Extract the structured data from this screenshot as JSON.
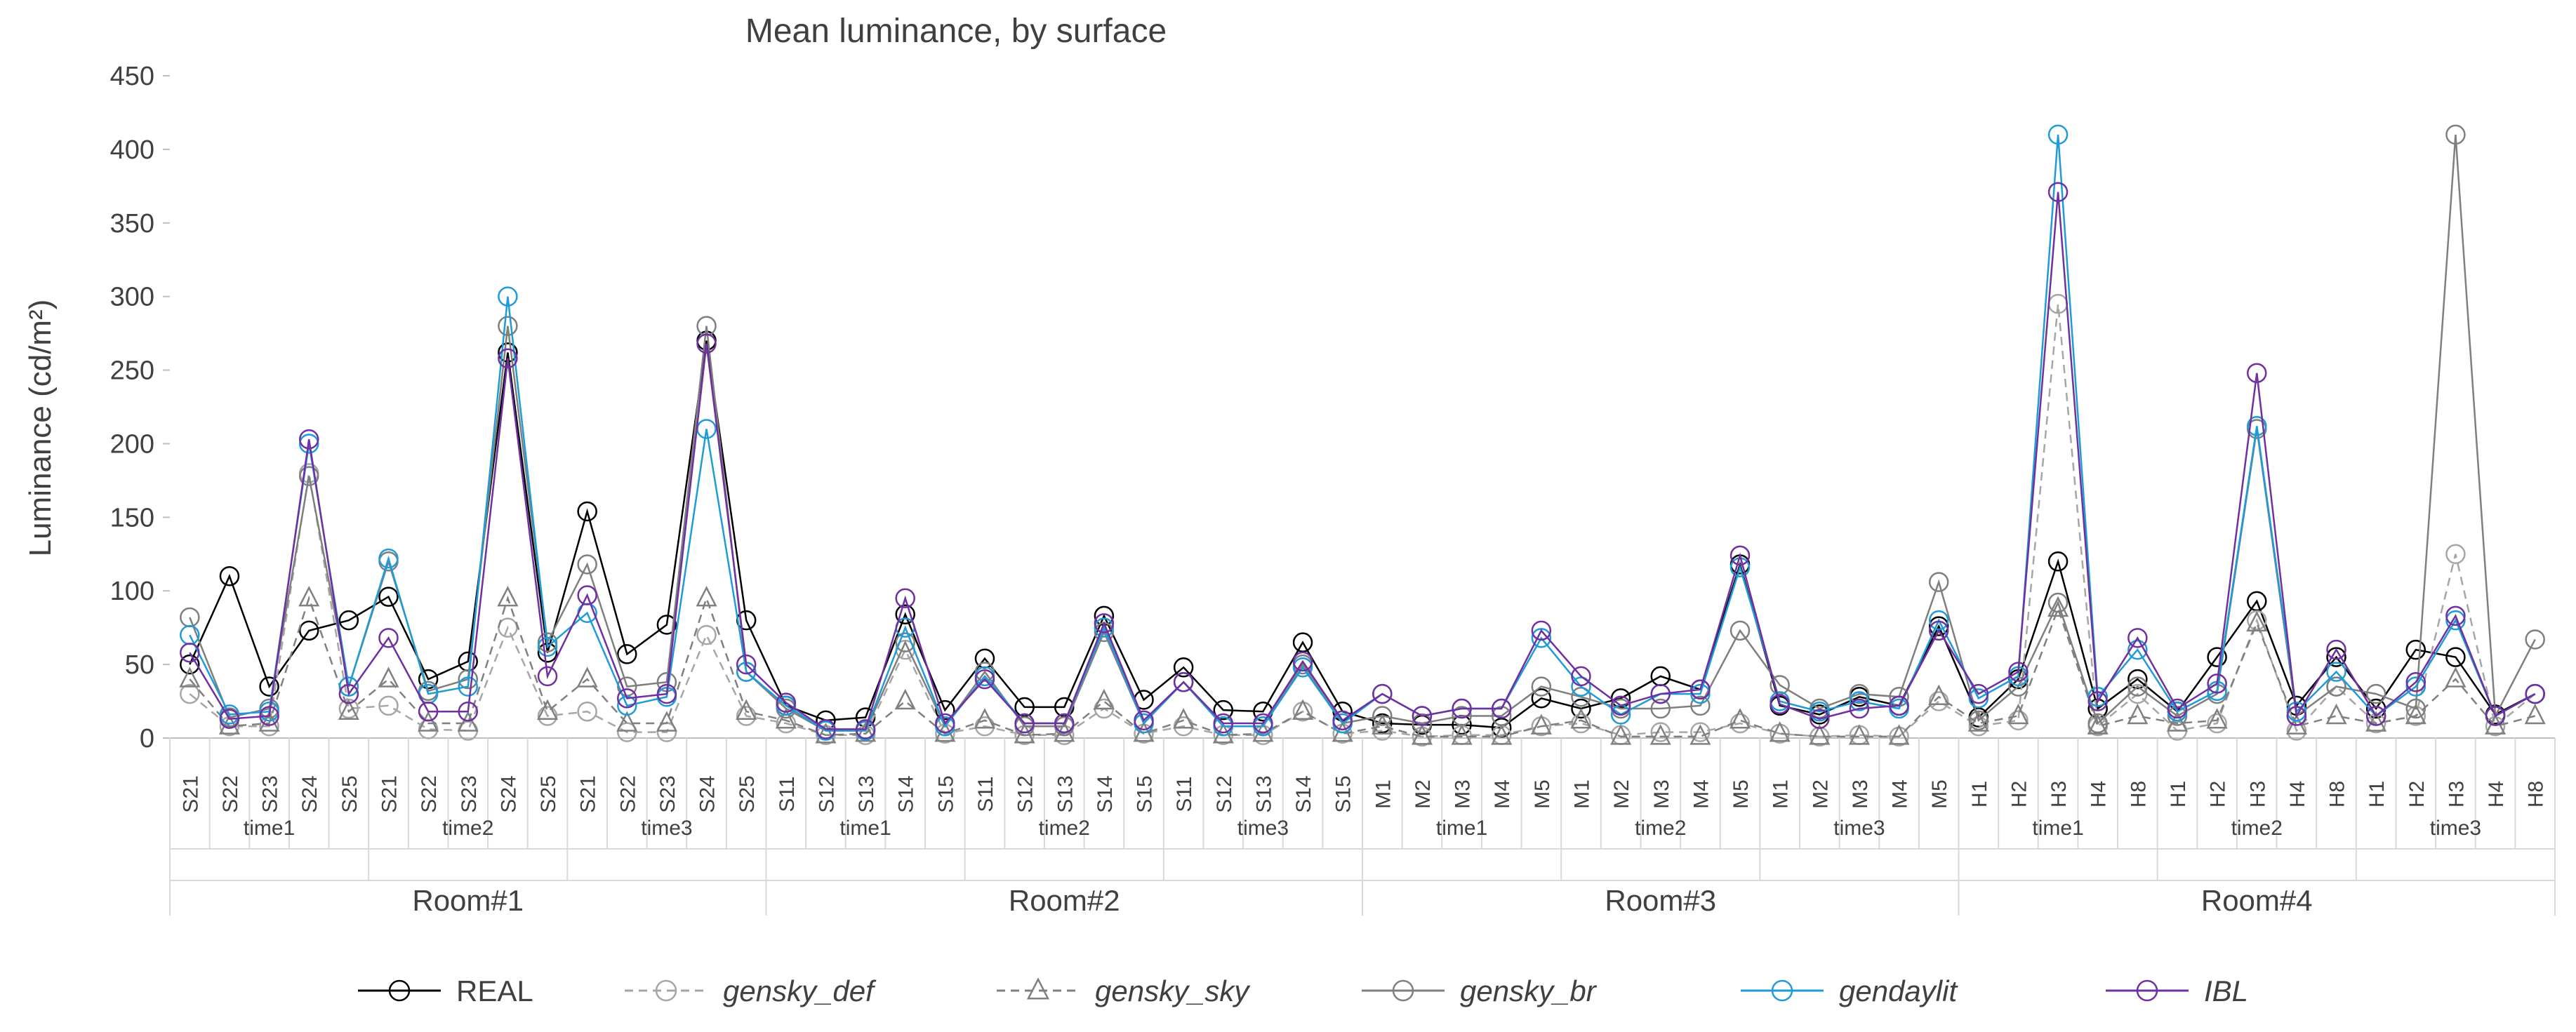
{
  "chart_data": {
    "type": "line",
    "title": "Mean luminance, by surface",
    "ylabel": "Luminance (cd/m²)",
    "xlabel": "",
    "ylim": [
      0,
      450
    ],
    "yticks": [
      0,
      50,
      100,
      150,
      200,
      250,
      300,
      350,
      400,
      450
    ],
    "grid": false,
    "legend_position": "bottom",
    "rooms": [
      {
        "name": "Room#1",
        "times": [
          {
            "name": "time1",
            "surfaces": [
              "S21",
              "S22",
              "S23",
              "S24",
              "S25"
            ]
          },
          {
            "name": "time2",
            "surfaces": [
              "S21",
              "S22",
              "S23",
              "S24",
              "S25"
            ]
          },
          {
            "name": "time3",
            "surfaces": [
              "S21",
              "S22",
              "S23",
              "S24",
              "S25"
            ]
          }
        ]
      },
      {
        "name": "Room#2",
        "times": [
          {
            "name": "time1",
            "surfaces": [
              "S11",
              "S12",
              "S13",
              "S14",
              "S15"
            ]
          },
          {
            "name": "time2",
            "surfaces": [
              "S11",
              "S12",
              "S13",
              "S14",
              "S15"
            ]
          },
          {
            "name": "time3",
            "surfaces": [
              "S11",
              "S12",
              "S13",
              "S14",
              "S15"
            ]
          }
        ]
      },
      {
        "name": "Room#3",
        "times": [
          {
            "name": "time1",
            "surfaces": [
              "M1",
              "M2",
              "M3",
              "M4",
              "M5"
            ]
          },
          {
            "name": "time2",
            "surfaces": [
              "M1",
              "M2",
              "M3",
              "M4",
              "M5"
            ]
          },
          {
            "name": "time3",
            "surfaces": [
              "M1",
              "M2",
              "M3",
              "M4",
              "M5"
            ]
          }
        ]
      },
      {
        "name": "Room#4",
        "times": [
          {
            "name": "time1",
            "surfaces": [
              "H1",
              "H2",
              "H3",
              "H4",
              "H8"
            ]
          },
          {
            "name": "time2",
            "surfaces": [
              "H1",
              "H2",
              "H3",
              "H4",
              "H8"
            ]
          },
          {
            "name": "time3",
            "surfaces": [
              "H1",
              "H2",
              "H3",
              "H4",
              "H8"
            ]
          }
        ]
      }
    ],
    "series": [
      {
        "name": "REAL",
        "color": "#000000",
        "marker": "circle",
        "dash": "solid",
        "italic": false,
        "values": [
          50,
          110,
          35,
          73,
          80,
          96,
          40,
          52,
          262,
          58,
          154,
          57,
          77,
          270,
          80,
          22,
          12,
          14,
          84,
          19,
          54,
          21,
          21,
          83,
          26,
          48,
          19,
          18,
          65,
          18,
          10,
          9,
          9,
          7,
          27,
          20,
          27,
          42,
          33,
          118,
          22,
          16,
          28,
          22,
          76,
          14,
          40,
          120,
          20,
          40,
          18,
          55,
          93,
          22,
          55,
          20,
          60,
          55,
          16,
          30
        ]
      },
      {
        "name": "gensky_def",
        "color": "#a6a6a6",
        "marker": "circle",
        "dash": "dashed",
        "italic": true,
        "values": [
          30,
          8,
          8,
          180,
          20,
          22,
          6,
          5,
          75,
          15,
          18,
          4,
          4,
          70,
          15,
          10,
          2,
          2,
          60,
          3,
          8,
          2,
          2,
          20,
          3,
          8,
          2,
          2,
          18,
          3,
          5,
          1,
          2,
          2,
          8,
          10,
          2,
          4,
          4,
          10,
          3,
          1,
          2,
          1,
          25,
          8,
          12,
          295,
          8,
          30,
          5,
          10,
          80,
          5,
          35,
          10,
          15,
          125,
          8,
          30
        ]
      },
      {
        "name": "gensky_sky",
        "color": "#808080",
        "marker": "triangle",
        "dash": "dashed",
        "italic": true,
        "values": [
          40,
          8,
          10,
          95,
          18,
          40,
          10,
          10,
          95,
          18,
          40,
          10,
          10,
          95,
          18,
          12,
          2,
          3,
          25,
          3,
          12,
          2,
          3,
          25,
          3,
          12,
          2,
          3,
          18,
          3,
          8,
          1,
          1,
          1,
          8,
          12,
          1,
          1,
          1,
          12,
          3,
          1,
          1,
          1,
          28,
          10,
          15,
          88,
          8,
          15,
          10,
          12,
          78,
          8,
          15,
          10,
          15,
          40,
          8,
          15
        ]
      },
      {
        "name": "gensky_br",
        "color": "#7f7f7f",
        "marker": "circle",
        "dash": "solid",
        "italic": true,
        "values": [
          82,
          14,
          20,
          178,
          35,
          120,
          32,
          40,
          280,
          65,
          118,
          35,
          38,
          280,
          45,
          20,
          5,
          5,
          65,
          8,
          45,
          8,
          8,
          72,
          10,
          38,
          8,
          8,
          50,
          10,
          15,
          10,
          15,
          15,
          35,
          28,
          20,
          20,
          22,
          73,
          36,
          20,
          30,
          28,
          106,
          12,
          35,
          92,
          10,
          35,
          15,
          30,
          210,
          15,
          35,
          30,
          20,
          410,
          15,
          67
        ]
      },
      {
        "name": "gendaylit",
        "color": "#1f9bd7",
        "marker": "circle",
        "dash": "solid",
        "italic": true,
        "values": [
          70,
          16,
          18,
          200,
          35,
          122,
          30,
          35,
          300,
          62,
          85,
          22,
          28,
          210,
          45,
          22,
          5,
          5,
          75,
          8,
          42,
          10,
          10,
          75,
          10,
          38,
          8,
          8,
          48,
          10,
          30,
          15,
          20,
          20,
          68,
          35,
          16,
          30,
          30,
          116,
          25,
          18,
          25,
          20,
          80,
          27,
          42,
          410,
          28,
          60,
          18,
          32,
          212,
          18,
          45,
          15,
          35,
          80,
          15,
          30
        ]
      },
      {
        "name": "IBL",
        "color": "#7030a0",
        "marker": "circle",
        "dash": "solid",
        "italic": true,
        "values": [
          58,
          13,
          15,
          203,
          30,
          68,
          18,
          18,
          258,
          42,
          97,
          27,
          30,
          268,
          50,
          24,
          6,
          6,
          95,
          10,
          40,
          10,
          10,
          78,
          12,
          38,
          10,
          10,
          52,
          12,
          30,
          15,
          20,
          20,
          73,
          42,
          22,
          30,
          33,
          124,
          23,
          13,
          20,
          22,
          73,
          30,
          45,
          371,
          25,
          68,
          20,
          37,
          248,
          15,
          60,
          15,
          38,
          83,
          15,
          30
        ]
      }
    ]
  }
}
